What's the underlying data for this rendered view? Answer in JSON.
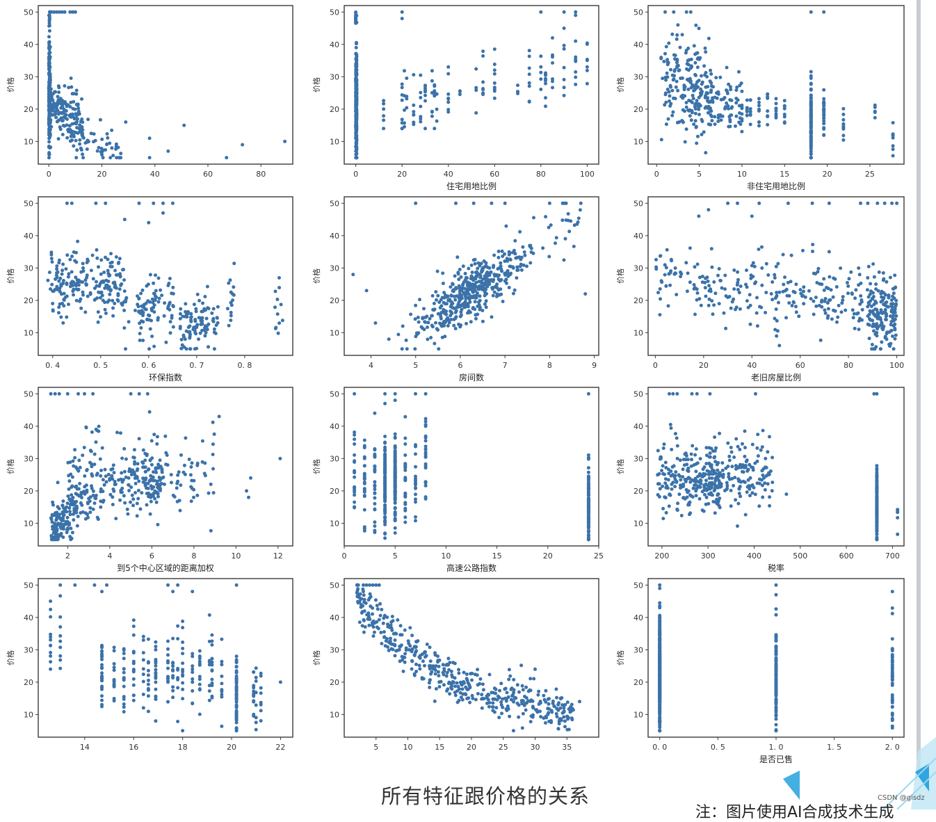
{
  "figure": {
    "caption": "所有特征跟价格的关系",
    "note": "注：图片使用AI合成技术生成",
    "watermark": "CSDN @gisdz",
    "colors": {
      "point": "#3b72a9",
      "axis": "#3a3a3a",
      "background": "#ffffff"
    }
  },
  "chart_data": [
    {
      "type": "scatter",
      "title": "",
      "xlabel": "",
      "ylabel": "价格",
      "xlim": [
        -4,
        92
      ],
      "ylim": [
        3,
        52
      ],
      "xticks": [
        0,
        20,
        40,
        60,
        80
      ],
      "yticks": [
        10,
        20,
        30,
        40,
        50
      ],
      "distribution": "crim"
    },
    {
      "type": "scatter",
      "title": "",
      "xlabel": "住宅用地比例",
      "ylabel": "价格",
      "xlim": [
        -5,
        105
      ],
      "ylim": [
        3,
        52
      ],
      "xticks": [
        0,
        20,
        40,
        60,
        80,
        100
      ],
      "yticks": [
        10,
        20,
        30,
        40,
        50
      ],
      "distribution": "zn"
    },
    {
      "type": "scatter",
      "title": "",
      "xlabel": "非住宅用地比例",
      "ylabel": "价格",
      "xlim": [
        -1,
        29
      ],
      "ylim": [
        3,
        52
      ],
      "xticks": [
        0,
        5,
        10,
        15,
        20,
        25
      ],
      "yticks": [
        10,
        20,
        30,
        40,
        50
      ],
      "distribution": "indus"
    },
    {
      "type": "scatter",
      "title": "",
      "xlabel": "环保指数",
      "ylabel": "价格",
      "xlim": [
        0.37,
        0.9
      ],
      "ylim": [
        3,
        52
      ],
      "xticks": [
        0.4,
        0.5,
        0.6,
        0.7,
        0.8
      ],
      "xticklabels": [
        "0. 4",
        "0. 5",
        "0. 6",
        "0. 7",
        "0. 8"
      ],
      "yticks": [
        10,
        20,
        30,
        40,
        50
      ],
      "distribution": "nox"
    },
    {
      "type": "scatter",
      "title": "",
      "xlabel": "房间数",
      "ylabel": "价格",
      "xlim": [
        3.4,
        9.1
      ],
      "ylim": [
        3,
        52
      ],
      "xticks": [
        4,
        5,
        6,
        7,
        8,
        9
      ],
      "yticks": [
        10,
        20,
        30,
        40,
        50
      ],
      "distribution": "rm"
    },
    {
      "type": "scatter",
      "title": "",
      "xlabel": "老旧房屋比例",
      "ylabel": "价格",
      "xlim": [
        -3,
        103
      ],
      "ylim": [
        3,
        52
      ],
      "xticks": [
        0,
        20,
        40,
        60,
        80,
        100
      ],
      "yticks": [
        10,
        20,
        30,
        40,
        50
      ],
      "distribution": "age"
    },
    {
      "type": "scatter",
      "title": "",
      "xlabel": "到5个中心区域的距离加权",
      "ylabel": "价格",
      "xlim": [
        0.6,
        12.7
      ],
      "ylim": [
        3,
        52
      ],
      "xticks": [
        2,
        4,
        6,
        8,
        10,
        12
      ],
      "yticks": [
        10,
        20,
        30,
        40,
        50
      ],
      "distribution": "dis"
    },
    {
      "type": "scatter",
      "title": "",
      "xlabel": "高速公路指数",
      "ylabel": "价格",
      "xlim": [
        0,
        25
      ],
      "ylim": [
        3,
        52
      ],
      "xticks": [
        0,
        5,
        10,
        15,
        20,
        25
      ],
      "yticks": [
        10,
        20,
        30,
        40,
        50
      ],
      "distribution": "rad"
    },
    {
      "type": "scatter",
      "title": "",
      "xlabel": "税率",
      "ylabel": "价格",
      "xlim": [
        170,
        725
      ],
      "ylim": [
        3,
        52
      ],
      "xticks": [
        200,
        300,
        400,
        500,
        600,
        700
      ],
      "yticks": [
        10,
        20,
        30,
        40,
        50
      ],
      "distribution": "tax"
    },
    {
      "type": "scatter",
      "title": "",
      "xlabel": "",
      "ylabel": "价格",
      "xlim": [
        12.1,
        22.5
      ],
      "ylim": [
        3,
        52
      ],
      "xticks": [
        14,
        16,
        18,
        20,
        22
      ],
      "yticks": [
        10,
        20,
        30,
        40,
        50
      ],
      "distribution": "ptratio"
    },
    {
      "type": "scatter",
      "title": "",
      "xlabel": "",
      "ylabel": "价格",
      "xlim": [
        0,
        40
      ],
      "ylim": [
        3,
        52
      ],
      "xticks": [
        5,
        10,
        15,
        20,
        25,
        30,
        35
      ],
      "yticks": [
        10,
        20,
        30,
        40,
        50
      ],
      "distribution": "lstat"
    },
    {
      "type": "scatter",
      "title": "",
      "xlabel": "是否已售",
      "ylabel": "价格",
      "xlim": [
        -0.1,
        2.1
      ],
      "ylim": [
        3,
        52
      ],
      "xticks": [
        0.0,
        0.5,
        1.0,
        1.5,
        2.0
      ],
      "xticklabels": [
        "0. 0",
        "0. 5",
        "1. 0",
        "1. 5",
        "2. 0"
      ],
      "yticks": [
        10,
        20,
        30,
        40,
        50
      ],
      "distribution": "sold"
    }
  ]
}
